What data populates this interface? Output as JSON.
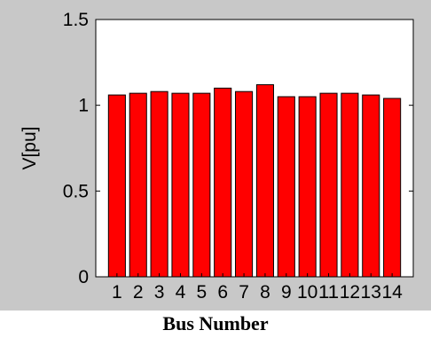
{
  "chart_data": {
    "type": "bar",
    "categories": [
      "1",
      "2",
      "3",
      "4",
      "5",
      "6",
      "7",
      "8",
      "9",
      "10",
      "11",
      "12",
      "13",
      "14"
    ],
    "values": [
      1.06,
      1.07,
      1.08,
      1.07,
      1.07,
      1.1,
      1.08,
      1.12,
      1.05,
      1.05,
      1.07,
      1.07,
      1.06,
      1.04
    ],
    "ylabel": "V[pu]",
    "xlabel": "Bus Number",
    "ylim": [
      0,
      1.5
    ],
    "yticks": [
      "0",
      "0.5",
      "1",
      "1.5"
    ],
    "grid": false,
    "colors": {
      "bar_fill": "#ff0000",
      "bar_edge": "#000000",
      "figure_background": "#c8c8c8",
      "axes_background": "#ffffff"
    }
  }
}
